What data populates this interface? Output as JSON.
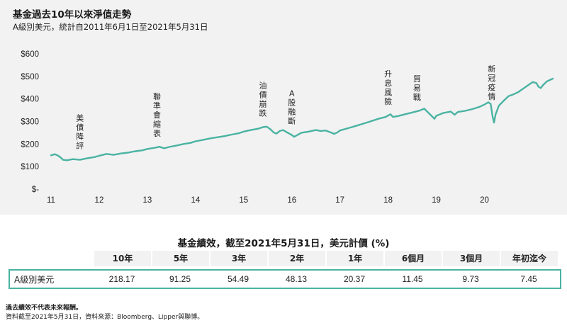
{
  "title": "基金過去10年以來淨值走勢",
  "subtitle": "A級別美元，統計自2011年6月1日至2021年5月31日",
  "chart_data": {
    "type": "line",
    "title": "基金過去10年以來淨值走勢",
    "subtitle": "A級別美元，統計自2011年6月1日至2021年5月31日",
    "color": "#4ab3a2",
    "y_tick_labels": [
      "$-",
      "$100",
      "$200",
      "$300",
      "$400",
      "$500",
      "$600"
    ],
    "y_ticks": [
      0,
      100,
      200,
      300,
      400,
      500,
      600
    ],
    "ylim": [
      0,
      600
    ],
    "x_tick_labels": [
      "11",
      "12",
      "13",
      "14",
      "15",
      "16",
      "17",
      "18",
      "19",
      "20"
    ],
    "x_ticks": [
      2011,
      2012,
      2013,
      2014,
      2015,
      2016,
      2017,
      2018,
      2019,
      2020
    ],
    "xlim": [
      2011,
      2021.42
    ],
    "grid": false,
    "series": [
      {
        "points": [
          [
            2011.0,
            150
          ],
          [
            2011.08,
            155
          ],
          [
            2011.15,
            148
          ],
          [
            2011.2,
            140
          ],
          [
            2011.25,
            130
          ],
          [
            2011.33,
            128
          ],
          [
            2011.45,
            133
          ],
          [
            2011.6,
            130
          ],
          [
            2011.75,
            137
          ],
          [
            2011.9,
            142
          ],
          [
            2012.0,
            148
          ],
          [
            2012.15,
            156
          ],
          [
            2012.3,
            152
          ],
          [
            2012.45,
            158
          ],
          [
            2012.6,
            162
          ],
          [
            2012.75,
            168
          ],
          [
            2012.9,
            172
          ],
          [
            2013.0,
            178
          ],
          [
            2013.15,
            183
          ],
          [
            2013.25,
            188
          ],
          [
            2013.35,
            181
          ],
          [
            2013.45,
            187
          ],
          [
            2013.6,
            193
          ],
          [
            2013.75,
            200
          ],
          [
            2013.9,
            205
          ],
          [
            2014.0,
            212
          ],
          [
            2014.15,
            218
          ],
          [
            2014.3,
            225
          ],
          [
            2014.45,
            230
          ],
          [
            2014.6,
            235
          ],
          [
            2014.75,
            242
          ],
          [
            2014.9,
            248
          ],
          [
            2015.0,
            255
          ],
          [
            2015.15,
            262
          ],
          [
            2015.3,
            268
          ],
          [
            2015.4,
            275
          ],
          [
            2015.48,
            277
          ],
          [
            2015.55,
            266
          ],
          [
            2015.62,
            252
          ],
          [
            2015.68,
            246
          ],
          [
            2015.75,
            258
          ],
          [
            2015.82,
            262
          ],
          [
            2015.9,
            252
          ],
          [
            2016.0,
            240
          ],
          [
            2016.05,
            232
          ],
          [
            2016.1,
            238
          ],
          [
            2016.2,
            250
          ],
          [
            2016.35,
            255
          ],
          [
            2016.5,
            262
          ],
          [
            2016.6,
            258
          ],
          [
            2016.7,
            260
          ],
          [
            2016.8,
            252
          ],
          [
            2016.88,
            245
          ],
          [
            2016.95,
            252
          ],
          [
            2017.0,
            260
          ],
          [
            2017.2,
            272
          ],
          [
            2017.4,
            285
          ],
          [
            2017.6,
            298
          ],
          [
            2017.8,
            312
          ],
          [
            2017.95,
            320
          ],
          [
            2018.05,
            332
          ],
          [
            2018.1,
            320
          ],
          [
            2018.2,
            324
          ],
          [
            2018.35,
            332
          ],
          [
            2018.5,
            340
          ],
          [
            2018.65,
            348
          ],
          [
            2018.75,
            357
          ],
          [
            2018.82,
            342
          ],
          [
            2018.9,
            325
          ],
          [
            2018.96,
            312
          ],
          [
            2019.0,
            325
          ],
          [
            2019.15,
            338
          ],
          [
            2019.3,
            344
          ],
          [
            2019.38,
            330
          ],
          [
            2019.45,
            342
          ],
          [
            2019.6,
            347
          ],
          [
            2019.75,
            355
          ],
          [
            2019.9,
            365
          ],
          [
            2020.0,
            375
          ],
          [
            2020.08,
            385
          ],
          [
            2020.13,
            378
          ],
          [
            2020.17,
            320
          ],
          [
            2020.2,
            295
          ],
          [
            2020.23,
            330
          ],
          [
            2020.3,
            370
          ],
          [
            2020.4,
            392
          ],
          [
            2020.5,
            412
          ],
          [
            2020.6,
            420
          ],
          [
            2020.7,
            430
          ],
          [
            2020.8,
            445
          ],
          [
            2020.9,
            460
          ],
          [
            2021.0,
            475
          ],
          [
            2021.08,
            470
          ],
          [
            2021.12,
            455
          ],
          [
            2021.17,
            448
          ],
          [
            2021.22,
            462
          ],
          [
            2021.3,
            478
          ],
          [
            2021.36,
            484
          ],
          [
            2021.42,
            490
          ]
        ]
      }
    ],
    "annotations": [
      {
        "text": "美債降評",
        "x": 2011.6
      },
      {
        "text": "聯準會縮表",
        "x": 2013.2
      },
      {
        "text": "油價崩跌",
        "x": 2015.4
      },
      {
        "text": "A股融斷",
        "x": 2016.0
      },
      {
        "text": "升息風險",
        "x": 2018.0
      },
      {
        "text": "貿易戰",
        "x": 2018.6
      },
      {
        "text": "新冠疫情",
        "x": 2020.15
      }
    ]
  },
  "performance_table": {
    "title": "基金績效，截至2021年5月31日，美元計價 (%)",
    "headers": [
      "10年",
      "5年",
      "3年",
      "2年",
      "1年",
      "6個月",
      "3個月",
      "年初迄今"
    ],
    "row_label": "A級別美元",
    "values": [
      "218.17",
      "91.25",
      "54.49",
      "48.13",
      "20.37",
      "11.45",
      "9.73",
      "7.45"
    ]
  },
  "footnotes": {
    "line1": "過去績效不代表未來報酬。",
    "line2": "資料截至2021年5月31日，資料來源：Bloomberg、Lipper與聯博。"
  }
}
